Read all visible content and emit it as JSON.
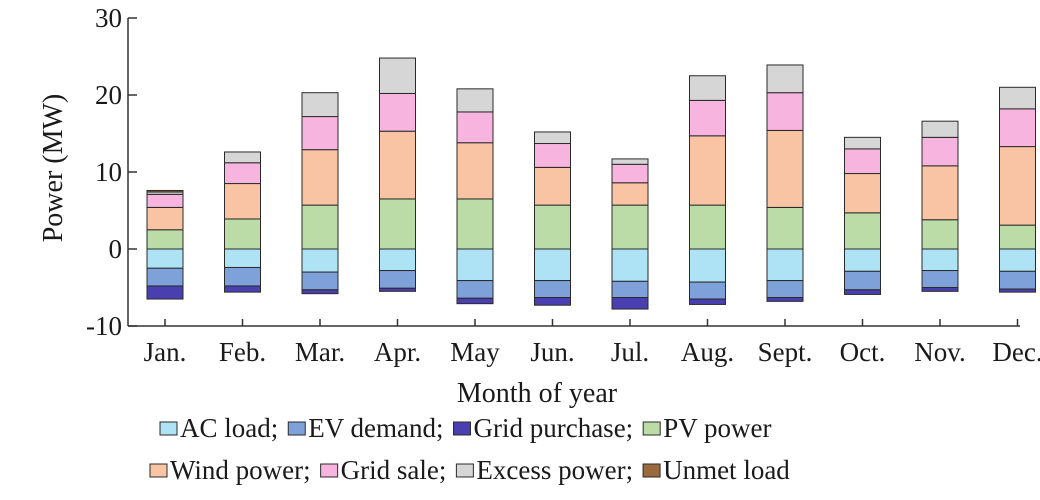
{
  "chart_data": {
    "type": "bar",
    "stacked": true,
    "xlabel": "Month of year",
    "ylabel": "Power (MW)",
    "ylim": [
      -10,
      30
    ],
    "yticks": [
      "-10",
      "0",
      "10",
      "20",
      "30"
    ],
    "grid": false,
    "legend_position": "bottom",
    "categories": [
      "Jan.",
      "Feb.",
      "Mar.",
      "Apr.",
      "May",
      "Jun.",
      "Jul.",
      "Aug.",
      "Sept.",
      "Oct.",
      "Nov.",
      "Dec."
    ],
    "series": [
      {
        "name": "AC load",
        "legend_label": "AC load;",
        "color": "#aee3f6",
        "values": [
          -2.5,
          -2.4,
          -3.0,
          -2.8,
          -4.1,
          -4.1,
          -4.2,
          -4.3,
          -4.1,
          -2.9,
          -2.8,
          -2.9
        ]
      },
      {
        "name": "EV demand",
        "legend_label": "EV demand;",
        "color": "#7fa1d9",
        "values": [
          -2.3,
          -2.4,
          -2.3,
          -2.3,
          -2.3,
          -2.2,
          -2.1,
          -2.2,
          -2.2,
          -2.4,
          -2.2,
          -2.3
        ]
      },
      {
        "name": "Grid purchase",
        "legend_label": "Grid purchase;",
        "color": "#4a3fb0",
        "values": [
          -1.7,
          -0.8,
          -0.5,
          -0.4,
          -0.7,
          -1.0,
          -1.5,
          -0.7,
          -0.5,
          -0.6,
          -0.5,
          -0.4
        ]
      },
      {
        "name": "PV power",
        "legend_label": "PV power",
        "color": "#bcdca7",
        "values": [
          2.5,
          3.9,
          5.7,
          6.5,
          6.5,
          5.7,
          5.7,
          5.7,
          5.4,
          4.7,
          3.8,
          3.1
        ]
      },
      {
        "name": "Wind power",
        "legend_label": "Wind power;",
        "color": "#f9c4a4",
        "values": [
          2.9,
          4.6,
          7.2,
          8.8,
          7.3,
          4.9,
          2.9,
          9.0,
          10.0,
          5.1,
          7.0,
          10.2
        ]
      },
      {
        "name": "Grid sale",
        "legend_label": "Grid sale;",
        "color": "#f7b4df",
        "values": [
          1.7,
          2.7,
          4.3,
          4.9,
          4.0,
          3.1,
          2.4,
          4.6,
          4.9,
          3.2,
          3.7,
          4.9
        ]
      },
      {
        "name": "Excess power",
        "legend_label": "Excess power;",
        "color": "#d6d6d6",
        "values": [
          0.3,
          1.4,
          3.1,
          4.6,
          3.0,
          1.5,
          0.7,
          3.2,
          3.6,
          1.5,
          2.1,
          2.8
        ]
      },
      {
        "name": "Unmet load",
        "legend_label": "Unmet load",
        "color": "#9b6a3c",
        "values": [
          0.2,
          0,
          0,
          0,
          0,
          0,
          0,
          0,
          0,
          0,
          0,
          0
        ]
      }
    ]
  }
}
